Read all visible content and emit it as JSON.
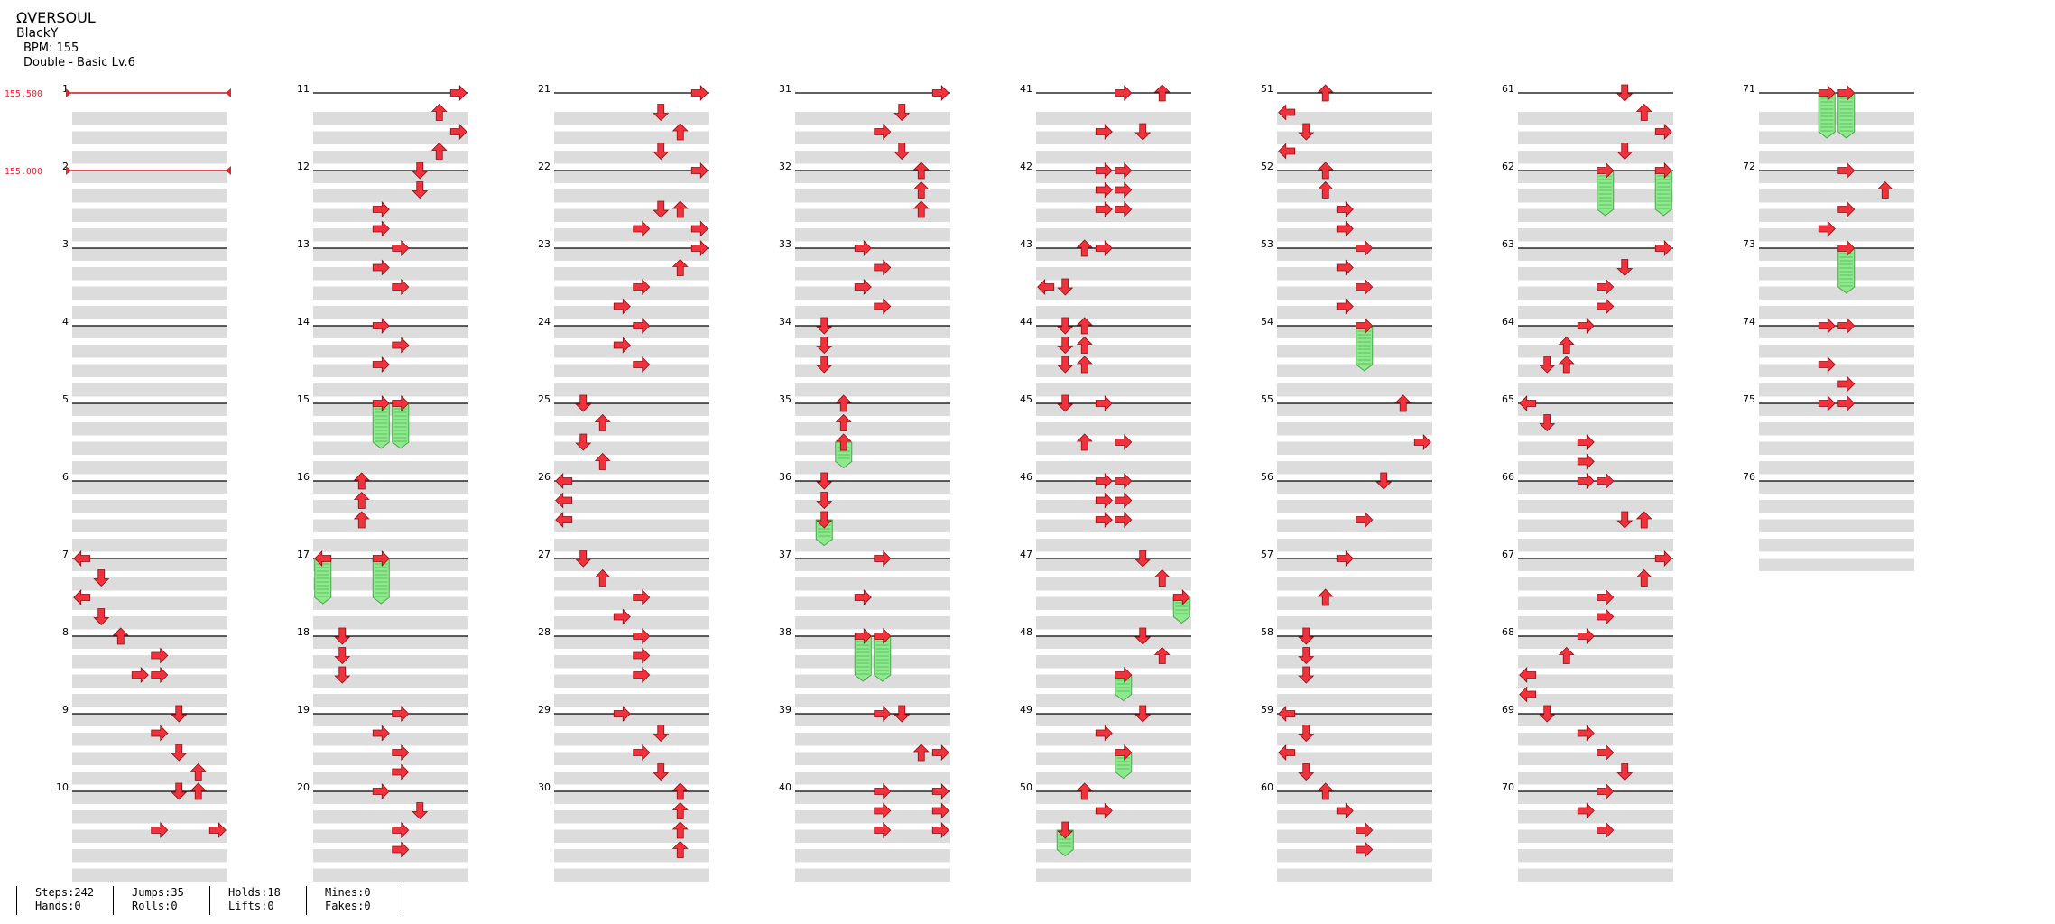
{
  "song": {
    "title": "ΩVERSOUL",
    "artist": "BlackY",
    "bpm_label": "BPM: 155",
    "difficulty_label": "Double - Basic  Lv.6"
  },
  "bpm_markers": [
    {
      "measure": 1,
      "label": "155.500"
    },
    {
      "measure": 2,
      "label": "155.000"
    }
  ],
  "measure_count": 76,
  "colors": {
    "arrow": "#f0323c",
    "hold": "#8ee88e",
    "row_shade": "#dcdcdc",
    "bpm": "#e8232d"
  },
  "stats": [
    {
      "top": "Steps:242",
      "bottom": "Hands:0"
    },
    {
      "top": "Jumps:35",
      "bottom": "Rolls:0"
    },
    {
      "top": "Holds:18",
      "bottom": "Lifts:0"
    },
    {
      "top": "Mines:0",
      "bottom": "Fakes:0"
    }
  ],
  "notes": {
    "7": [
      [
        0,
        0,
        "L"
      ],
      [
        0.25,
        1,
        "D"
      ],
      [
        0.5,
        0,
        "L"
      ],
      [
        0.75,
        1,
        "D"
      ]
    ],
    "8": [
      [
        0,
        2,
        "U"
      ],
      [
        0.25,
        4,
        "R"
      ],
      [
        0.5,
        3,
        "R"
      ],
      [
        0.5,
        4,
        "R"
      ]
    ],
    "9": [
      [
        0,
        5,
        "D"
      ],
      [
        0.25,
        4,
        "R"
      ],
      [
        0.5,
        5,
        "D"
      ],
      [
        0.75,
        6,
        "U"
      ]
    ],
    "10": [
      [
        0,
        5,
        "D"
      ],
      [
        0,
        6,
        "U"
      ],
      [
        0.5,
        4,
        "R"
      ],
      [
        0.5,
        7,
        "R"
      ]
    ],
    "11": [
      [
        0,
        7,
        "R"
      ],
      [
        0.25,
        6,
        "U"
      ],
      [
        0.5,
        7,
        "R"
      ],
      [
        0.75,
        6,
        "U"
      ]
    ],
    "12": [
      [
        0,
        5,
        "D"
      ],
      [
        0.25,
        5,
        "D"
      ],
      [
        0.5,
        3,
        "R"
      ],
      [
        0.75,
        3,
        "R"
      ]
    ],
    "13": [
      [
        0,
        4,
        "R"
      ],
      [
        0.25,
        3,
        "R"
      ],
      [
        0.5,
        4,
        "R"
      ]
    ],
    "14": [
      [
        0,
        3,
        "R"
      ],
      [
        0.25,
        4,
        "R"
      ],
      [
        0.5,
        3,
        "R"
      ]
    ],
    "15": [
      [
        0,
        3,
        "R",
        0.5
      ],
      [
        0,
        4,
        "R",
        0.5
      ]
    ],
    "16": [
      [
        0,
        2,
        "U"
      ],
      [
        0.25,
        2,
        "U"
      ],
      [
        0.5,
        2,
        "U"
      ]
    ],
    "17": [
      [
        0,
        0,
        "L",
        0.5
      ],
      [
        0,
        3,
        "R",
        0.5
      ]
    ],
    "18": [
      [
        0,
        1,
        "D"
      ],
      [
        0.25,
        1,
        "D"
      ],
      [
        0.5,
        1,
        "D"
      ]
    ],
    "19": [
      [
        0,
        4,
        "R"
      ],
      [
        0.25,
        3,
        "R"
      ],
      [
        0.5,
        4,
        "R"
      ],
      [
        0.75,
        4,
        "R"
      ]
    ],
    "20": [
      [
        0,
        3,
        "R"
      ],
      [
        0.25,
        5,
        "D"
      ],
      [
        0.5,
        4,
        "R"
      ],
      [
        0.75,
        4,
        "R"
      ]
    ],
    "21": [
      [
        0,
        7,
        "R"
      ],
      [
        0.25,
        5,
        "D"
      ],
      [
        0.5,
        6,
        "U"
      ],
      [
        0.75,
        5,
        "D"
      ]
    ],
    "22": [
      [
        0,
        7,
        "R"
      ],
      [
        0.5,
        5,
        "D"
      ],
      [
        0.5,
        6,
        "U"
      ],
      [
        0.75,
        4,
        "R"
      ],
      [
        0.75,
        7,
        "R"
      ]
    ],
    "23": [
      [
        0,
        7,
        "R"
      ],
      [
        0.25,
        6,
        "U"
      ],
      [
        0.5,
        4,
        "R"
      ],
      [
        0.75,
        3,
        "R"
      ]
    ],
    "24": [
      [
        0,
        4,
        "R"
      ],
      [
        0.25,
        3,
        "R"
      ],
      [
        0.5,
        4,
        "R"
      ]
    ],
    "25": [
      [
        0,
        1,
        "D"
      ],
      [
        0.25,
        2,
        "U"
      ],
      [
        0.5,
        1,
        "D"
      ],
      [
        0.75,
        2,
        "U"
      ]
    ],
    "26": [
      [
        0,
        0,
        "L"
      ],
      [
        0.25,
        0,
        "L"
      ],
      [
        0.5,
        0,
        "L"
      ]
    ],
    "27": [
      [
        0,
        1,
        "D"
      ],
      [
        0.25,
        2,
        "U"
      ],
      [
        0.5,
        4,
        "R"
      ],
      [
        0.75,
        3,
        "R"
      ]
    ],
    "28": [
      [
        0,
        4,
        "R"
      ],
      [
        0.25,
        4,
        "R"
      ],
      [
        0.5,
        4,
        "R"
      ]
    ],
    "29": [
      [
        0,
        3,
        "R"
      ],
      [
        0.25,
        5,
        "D"
      ],
      [
        0.5,
        4,
        "R"
      ],
      [
        0.75,
        5,
        "D"
      ]
    ],
    "30": [
      [
        0,
        6,
        "U"
      ],
      [
        0.25,
        6,
        "U"
      ],
      [
        0.5,
        6,
        "U"
      ],
      [
        0.75,
        6,
        "U"
      ]
    ],
    "31": [
      [
        0,
        7,
        "R"
      ],
      [
        0.25,
        5,
        "D"
      ],
      [
        0.5,
        4,
        "R"
      ],
      [
        0.75,
        5,
        "D"
      ]
    ],
    "32": [
      [
        0,
        6,
        "U"
      ],
      [
        0.25,
        6,
        "U"
      ],
      [
        0.5,
        6,
        "U"
      ]
    ],
    "33": [
      [
        0,
        3,
        "R"
      ],
      [
        0.25,
        4,
        "R"
      ],
      [
        0.5,
        3,
        "R"
      ],
      [
        0.75,
        4,
        "R"
      ]
    ],
    "34": [
      [
        0,
        1,
        "D"
      ],
      [
        0.25,
        1,
        "D"
      ],
      [
        0.5,
        1,
        "D"
      ]
    ],
    "35": [
      [
        0,
        2,
        "U"
      ],
      [
        0.25,
        2,
        "U"
      ],
      [
        0.5,
        2,
        "U",
        0.25
      ]
    ],
    "36": [
      [
        0,
        1,
        "D"
      ],
      [
        0.25,
        1,
        "D"
      ],
      [
        0.5,
        1,
        "D",
        0.25
      ]
    ],
    "37": [
      [
        0,
        4,
        "R"
      ],
      [
        0.5,
        3,
        "R"
      ]
    ],
    "38": [
      [
        0,
        3,
        "R",
        0.5
      ],
      [
        0,
        4,
        "R",
        0.5
      ]
    ],
    "39": [
      [
        0,
        4,
        "R"
      ],
      [
        0,
        5,
        "D"
      ],
      [
        0.5,
        6,
        "U"
      ],
      [
        0.5,
        7,
        "R"
      ]
    ],
    "40": [
      [
        0,
        4,
        "R"
      ],
      [
        0,
        7,
        "R"
      ],
      [
        0.25,
        4,
        "R"
      ],
      [
        0.25,
        7,
        "R"
      ],
      [
        0.5,
        4,
        "R"
      ],
      [
        0.5,
        7,
        "R"
      ]
    ],
    "41": [
      [
        0,
        4,
        "R"
      ],
      [
        0,
        6,
        "U"
      ],
      [
        0.5,
        3,
        "R"
      ],
      [
        0.5,
        5,
        "D"
      ]
    ],
    "42": [
      [
        0,
        3,
        "R"
      ],
      [
        0,
        4,
        "R"
      ],
      [
        0.25,
        3,
        "R"
      ],
      [
        0.25,
        4,
        "R"
      ],
      [
        0.5,
        3,
        "R"
      ],
      [
        0.5,
        4,
        "R"
      ]
    ],
    "43": [
      [
        0,
        2,
        "U"
      ],
      [
        0,
        3,
        "R"
      ],
      [
        0.5,
        0,
        "L"
      ],
      [
        0.5,
        1,
        "D"
      ]
    ],
    "44": [
      [
        0,
        1,
        "D"
      ],
      [
        0,
        2,
        "U"
      ],
      [
        0.25,
        1,
        "D"
      ],
      [
        0.25,
        2,
        "U"
      ],
      [
        0.5,
        1,
        "D"
      ],
      [
        0.5,
        2,
        "U"
      ]
    ],
    "45": [
      [
        0,
        1,
        "D"
      ],
      [
        0,
        3,
        "R"
      ],
      [
        0.5,
        2,
        "U"
      ],
      [
        0.5,
        4,
        "R"
      ]
    ],
    "46": [
      [
        0,
        3,
        "R"
      ],
      [
        0,
        4,
        "R"
      ],
      [
        0.25,
        3,
        "R"
      ],
      [
        0.25,
        4,
        "R"
      ],
      [
        0.5,
        3,
        "R"
      ],
      [
        0.5,
        4,
        "R"
      ]
    ],
    "47": [
      [
        0,
        5,
        "D"
      ],
      [
        0.25,
        6,
        "U"
      ],
      [
        0.5,
        7,
        "R",
        0.25
      ]
    ],
    "48": [
      [
        0,
        5,
        "D"
      ],
      [
        0.25,
        6,
        "U"
      ],
      [
        0.5,
        4,
        "R",
        0.25
      ]
    ],
    "49": [
      [
        0,
        5,
        "D"
      ],
      [
        0.25,
        3,
        "R"
      ],
      [
        0.5,
        4,
        "R",
        0.25
      ]
    ],
    "50": [
      [
        0,
        2,
        "U"
      ],
      [
        0.25,
        3,
        "R"
      ],
      [
        0.5,
        1,
        "D",
        0.25
      ]
    ],
    "51": [
      [
        0,
        2,
        "U"
      ],
      [
        0.25,
        0,
        "L"
      ],
      [
        0.5,
        1,
        "D"
      ],
      [
        0.75,
        0,
        "L"
      ]
    ],
    "52": [
      [
        0,
        2,
        "U"
      ],
      [
        0.25,
        2,
        "U"
      ],
      [
        0.5,
        3,
        "R"
      ],
      [
        0.75,
        3,
        "R"
      ]
    ],
    "53": [
      [
        0,
        4,
        "R"
      ],
      [
        0.25,
        3,
        "R"
      ],
      [
        0.5,
        4,
        "R"
      ],
      [
        0.75,
        3,
        "R"
      ]
    ],
    "54": [
      [
        0,
        4,
        "R",
        0.5
      ]
    ],
    "55": [
      [
        0,
        6,
        "U"
      ],
      [
        0.5,
        7,
        "R"
      ]
    ],
    "56": [
      [
        0,
        5,
        "D"
      ],
      [
        0.5,
        4,
        "R"
      ]
    ],
    "57": [
      [
        0,
        3,
        "R"
      ],
      [
        0.5,
        2,
        "U"
      ]
    ],
    "58": [
      [
        0,
        1,
        "D"
      ],
      [
        0.25,
        1,
        "D"
      ],
      [
        0.5,
        1,
        "D"
      ]
    ],
    "59": [
      [
        0,
        0,
        "L"
      ],
      [
        0.25,
        1,
        "D"
      ],
      [
        0.5,
        0,
        "L"
      ],
      [
        0.75,
        1,
        "D"
      ]
    ],
    "60": [
      [
        0,
        2,
        "U"
      ],
      [
        0.25,
        3,
        "R"
      ],
      [
        0.5,
        4,
        "R"
      ],
      [
        0.75,
        4,
        "R"
      ]
    ],
    "61": [
      [
        0,
        5,
        "D"
      ],
      [
        0.25,
        6,
        "U"
      ],
      [
        0.5,
        7,
        "R"
      ],
      [
        0.75,
        5,
        "D"
      ]
    ],
    "62": [
      [
        0,
        4,
        "R",
        0.5
      ],
      [
        0,
        7,
        "R",
        0.5
      ]
    ],
    "63": [
      [
        0,
        7,
        "R"
      ],
      [
        0.25,
        5,
        "D"
      ],
      [
        0.5,
        4,
        "R"
      ],
      [
        0.75,
        4,
        "R"
      ]
    ],
    "64": [
      [
        0,
        3,
        "R"
      ],
      [
        0.25,
        2,
        "U"
      ],
      [
        0.5,
        1,
        "D"
      ],
      [
        0.5,
        2,
        "U"
      ]
    ],
    "65": [
      [
        0,
        0,
        "L"
      ],
      [
        0.25,
        1,
        "D"
      ],
      [
        0.5,
        3,
        "R"
      ],
      [
        0.75,
        3,
        "R"
      ]
    ],
    "66": [
      [
        0,
        3,
        "R"
      ],
      [
        0,
        4,
        "R"
      ],
      [
        0.5,
        5,
        "D"
      ],
      [
        0.5,
        6,
        "U"
      ]
    ],
    "67": [
      [
        0,
        7,
        "R"
      ],
      [
        0.25,
        6,
        "U"
      ],
      [
        0.5,
        4,
        "R"
      ],
      [
        0.75,
        4,
        "R"
      ]
    ],
    "68": [
      [
        0,
        3,
        "R"
      ],
      [
        0.25,
        2,
        "U"
      ],
      [
        0.5,
        0,
        "L"
      ],
      [
        0.75,
        0,
        "L"
      ]
    ],
    "69": [
      [
        0,
        1,
        "D"
      ],
      [
        0.25,
        3,
        "R"
      ],
      [
        0.5,
        4,
        "R"
      ],
      [
        0.75,
        5,
        "D"
      ]
    ],
    "70": [
      [
        0,
        4,
        "R"
      ],
      [
        0.25,
        3,
        "R"
      ],
      [
        0.5,
        4,
        "R"
      ]
    ],
    "71": [
      [
        0,
        3,
        "R",
        0.5
      ],
      [
        0,
        4,
        "R",
        0.5
      ]
    ],
    "72": [
      [
        0,
        4,
        "R"
      ],
      [
        0.25,
        6,
        "U"
      ],
      [
        0.5,
        4,
        "R"
      ],
      [
        0.75,
        3,
        "R"
      ]
    ],
    "73": [
      [
        0,
        4,
        "R",
        0.5
      ]
    ],
    "74": [
      [
        0,
        3,
        "R"
      ],
      [
        0,
        4,
        "R"
      ],
      [
        0.5,
        3,
        "R"
      ],
      [
        0.75,
        4,
        "R"
      ]
    ],
    "75": [
      [
        0,
        3,
        "R"
      ],
      [
        0,
        4,
        "R"
      ]
    ]
  }
}
